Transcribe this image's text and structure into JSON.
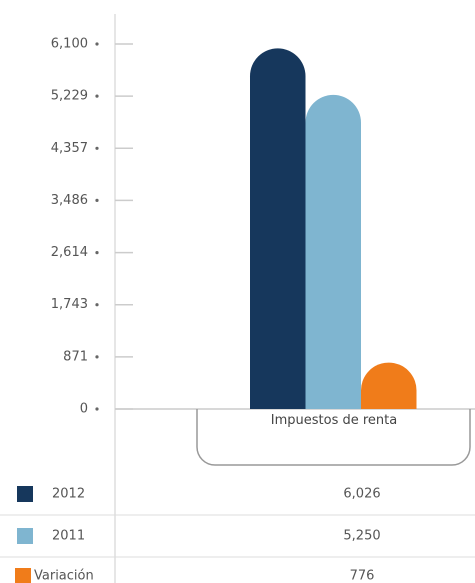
{
  "chart_data": {
    "type": "bar",
    "categories": [
      "Impuestos de renta"
    ],
    "series": [
      {
        "name": "2012",
        "color": "#16375c",
        "values": [
          6026
        ],
        "value_labels": [
          "6,026"
        ]
      },
      {
        "name": "2011",
        "color": "#7fb5d0",
        "values": [
          5250
        ],
        "value_labels": [
          "5,250"
        ]
      },
      {
        "name": "Variación",
        "color": "#f07c1a",
        "values": [
          776
        ],
        "value_labels": [
          "776"
        ]
      }
    ],
    "ylim": [
      0,
      6100
    ],
    "yticks": [
      0,
      {
        "value": 871,
        "label": "871"
      },
      {
        "value": 1743,
        "label": "1,743"
      },
      {
        "value": 2614,
        "label": "2,614"
      },
      {
        "value": 3486,
        "label": "3,486"
      },
      {
        "value": 4357,
        "label": "4,357"
      },
      {
        "value": 5229,
        "label": "5,229"
      },
      {
        "value": 6100,
        "label": "6,100"
      }
    ]
  }
}
